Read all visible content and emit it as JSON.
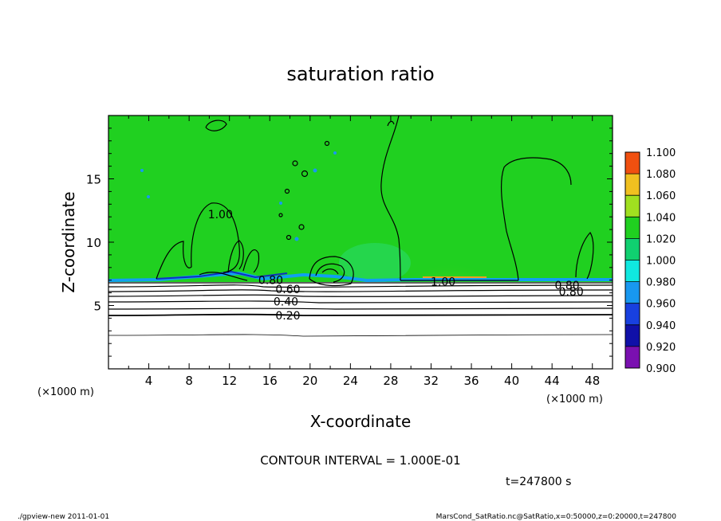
{
  "chart_data": {
    "type": "heatmap",
    "title": "saturation ratio",
    "xlabel": "X-coordinate",
    "ylabel": "Z-coordinate",
    "x_unit_left": "(×1000 m)",
    "x_unit_right": "(×1000 m)",
    "xlim": [
      0,
      50
    ],
    "ylim": [
      0,
      20
    ],
    "x_ticks": [
      4,
      8,
      12,
      16,
      20,
      24,
      28,
      32,
      36,
      40,
      44,
      48
    ],
    "y_ticks": [
      5,
      10,
      15
    ],
    "colorbar": {
      "levels": [
        0.9,
        0.92,
        0.94,
        0.96,
        0.98,
        1.0,
        1.02,
        1.04,
        1.06,
        1.08,
        1.1
      ],
      "labels": [
        "0.900",
        "0.920",
        "0.940",
        "0.960",
        "0.980",
        "1.000",
        "1.020",
        "1.040",
        "1.060",
        "1.080",
        "1.100"
      ],
      "colors": [
        "#7a10b0",
        "#1010a8",
        "#1840e0",
        "#1898f0",
        "#10e8e0",
        "#10d070",
        "#20d020",
        "#a0e020",
        "#f0c020",
        "#f05010",
        "#f08c8c"
      ]
    },
    "contour_labels": [
      {
        "text": "1.00",
        "x": 11.1,
        "z": 12.2
      },
      {
        "text": "0.80",
        "x": 16.1,
        "z": 7.0
      },
      {
        "text": "0.60",
        "x": 17.8,
        "z": 6.3
      },
      {
        "text": "0.40",
        "x": 17.6,
        "z": 5.3
      },
      {
        "text": "0.20",
        "x": 17.8,
        "z": 4.2
      },
      {
        "text": "1.00",
        "x": 33.2,
        "z": 6.9
      },
      {
        "text": "0.80",
        "x": 45.5,
        "z": 6.6
      },
      {
        "text": "0.80",
        "x": 45.9,
        "z": 6.1
      }
    ],
    "contour_interval_text": "CONTOUR INTERVAL = 1.000E-01",
    "time_text": "t=247800 s"
  },
  "footer": {
    "left": "./gpview-new  2011-01-01",
    "right": "MarsCond_SatRatio.nc@SatRatio,x=0:50000,z=0:20000,t=247800"
  }
}
